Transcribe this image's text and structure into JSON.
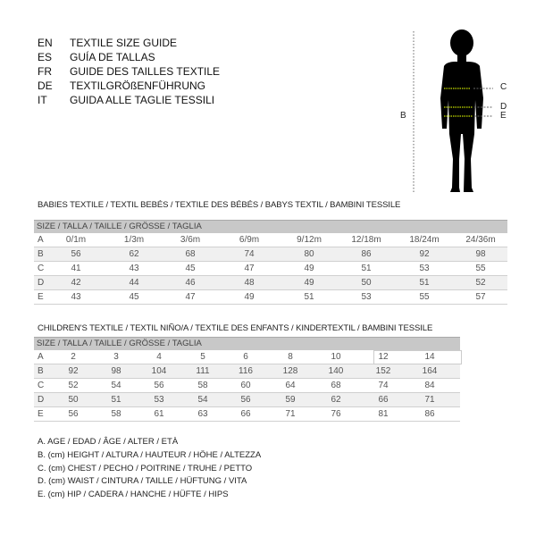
{
  "title_lines": [
    {
      "code": "EN",
      "text": "TEXTILE SIZE GUIDE"
    },
    {
      "code": "ES",
      "text": "GUÍA DE TALLAS"
    },
    {
      "code": "FR",
      "text": "GUIDE DES TAILLES TEXTILE"
    },
    {
      "code": "DE",
      "text": "TEXTILGRÖßENFÜHRUNG"
    },
    {
      "code": "IT",
      "text": "GUIDA ALLE TAGLIE TESSILI"
    }
  ],
  "figure": {
    "labels": {
      "B": "B",
      "C": "C",
      "D": "D",
      "E": "E"
    },
    "measure_color": "#c8e000"
  },
  "babies": {
    "title": "BABIES TEXTILE / TEXTIL BEBÉS / TEXTILE DES BÉBÉS / BABYS TEXTIL  / BAMBINI TESSILE",
    "header": "SIZE / TALLA / TAILLE / GRÖSSE / TAGLIA",
    "rows": [
      {
        "label": "A",
        "values": [
          "0/1m",
          "1/3m",
          "3/6m",
          "6/9m",
          "9/12m",
          "12/18m",
          "18/24m",
          "24/36m"
        ]
      },
      {
        "label": "B",
        "values": [
          "56",
          "62",
          "68",
          "74",
          "80",
          "86",
          "92",
          "98"
        ]
      },
      {
        "label": "C",
        "values": [
          "41",
          "43",
          "45",
          "47",
          "49",
          "51",
          "53",
          "55"
        ]
      },
      {
        "label": "D",
        "values": [
          "42",
          "44",
          "46",
          "48",
          "49",
          "50",
          "51",
          "52"
        ]
      },
      {
        "label": "E",
        "values": [
          "43",
          "45",
          "47",
          "49",
          "51",
          "53",
          "55",
          "57"
        ]
      }
    ]
  },
  "children": {
    "title": "CHILDREN'S TEXTILE / TEXTIL NIÑO/A / TEXTILE DES ENFANTS / KINDERTEXTIL / BAMBINI TESSILE",
    "header": "SIZE / TALLA / TAILLE / GRÖSSE / TAGLIA",
    "rows": [
      {
        "label": "A",
        "values": [
          "2",
          "3",
          "4",
          "5",
          "6",
          "8",
          "10",
          "12",
          "14"
        ]
      },
      {
        "label": "B",
        "values": [
          "92",
          "98",
          "104",
          "111",
          "116",
          "128",
          "140",
          "152",
          "164"
        ]
      },
      {
        "label": "C",
        "values": [
          "52",
          "54",
          "56",
          "58",
          "60",
          "64",
          "68",
          "74",
          "84"
        ]
      },
      {
        "label": "D",
        "values": [
          "50",
          "51",
          "53",
          "54",
          "56",
          "59",
          "62",
          "66",
          "71"
        ]
      },
      {
        "label": "E",
        "values": [
          "56",
          "58",
          "61",
          "63",
          "66",
          "71",
          "76",
          "81",
          "86"
        ]
      }
    ]
  },
  "legend": [
    "A. AGE / EDAD / ÂGE / ALTER / ETÀ",
    "B. (cm) HEIGHT / ALTURA / HAUTEUR / HÖHE / ALTEZZA",
    "C. (cm) CHEST / PECHO / POITRINE / TRUHE / PETTO",
    "D. (cm) WAIST / CINTURA / TAILLE / HÜFTUNG / VITA",
    "E. (cm) HIP / CADERA / HANCHE / HÜFTE / HIPS"
  ]
}
